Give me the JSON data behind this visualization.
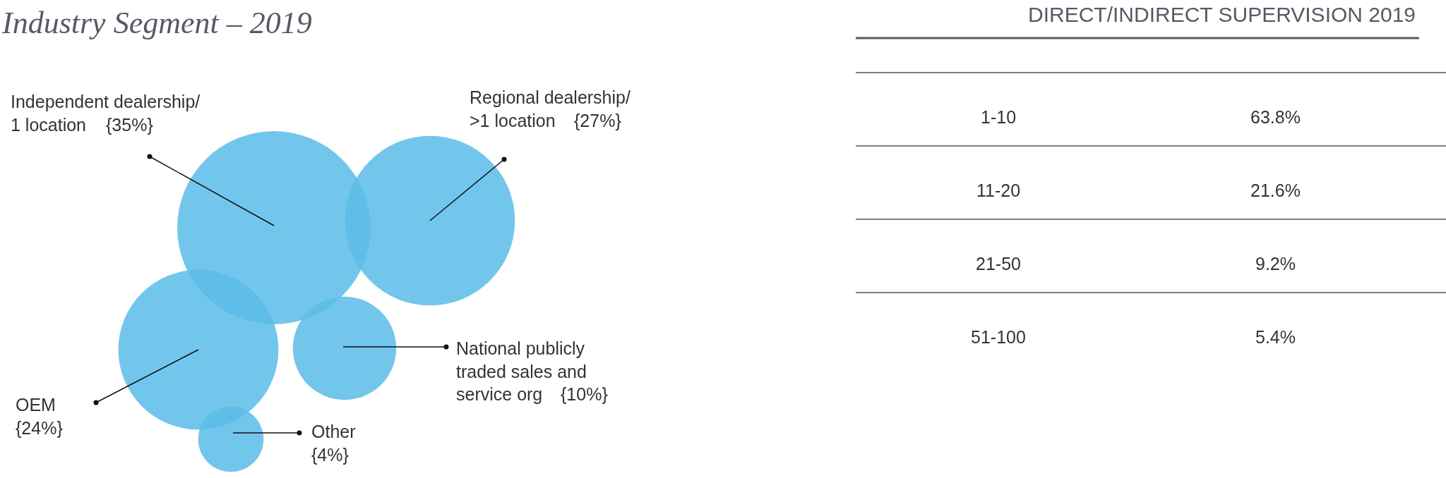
{
  "chart_data": [
    {
      "type": "other",
      "title": "Industry Segment – 2019",
      "color": "#5bbce8",
      "categories": [
        "Independent dealership/\n1 location",
        "Regional dealership/\n>1 location",
        "OEM",
        "National publicly\ntraded sales and\nservice org",
        "Other"
      ],
      "values": [
        35,
        27,
        24,
        10,
        4
      ],
      "value_labels": [
        "{35%}",
        "{27%}",
        "{24%}",
        "{10%}",
        "{4%}"
      ]
    },
    {
      "type": "other",
      "title": "DIRECT/INDIRECT SUPERVISION 2019",
      "categories": [
        "1-10",
        "11-20",
        "21-50",
        "51-100"
      ],
      "values": [
        63.8,
        21.6,
        9.2,
        5.4
      ],
      "value_labels": [
        "63.8%",
        "21.6%",
        "9.2%",
        "5.4%"
      ]
    }
  ]
}
